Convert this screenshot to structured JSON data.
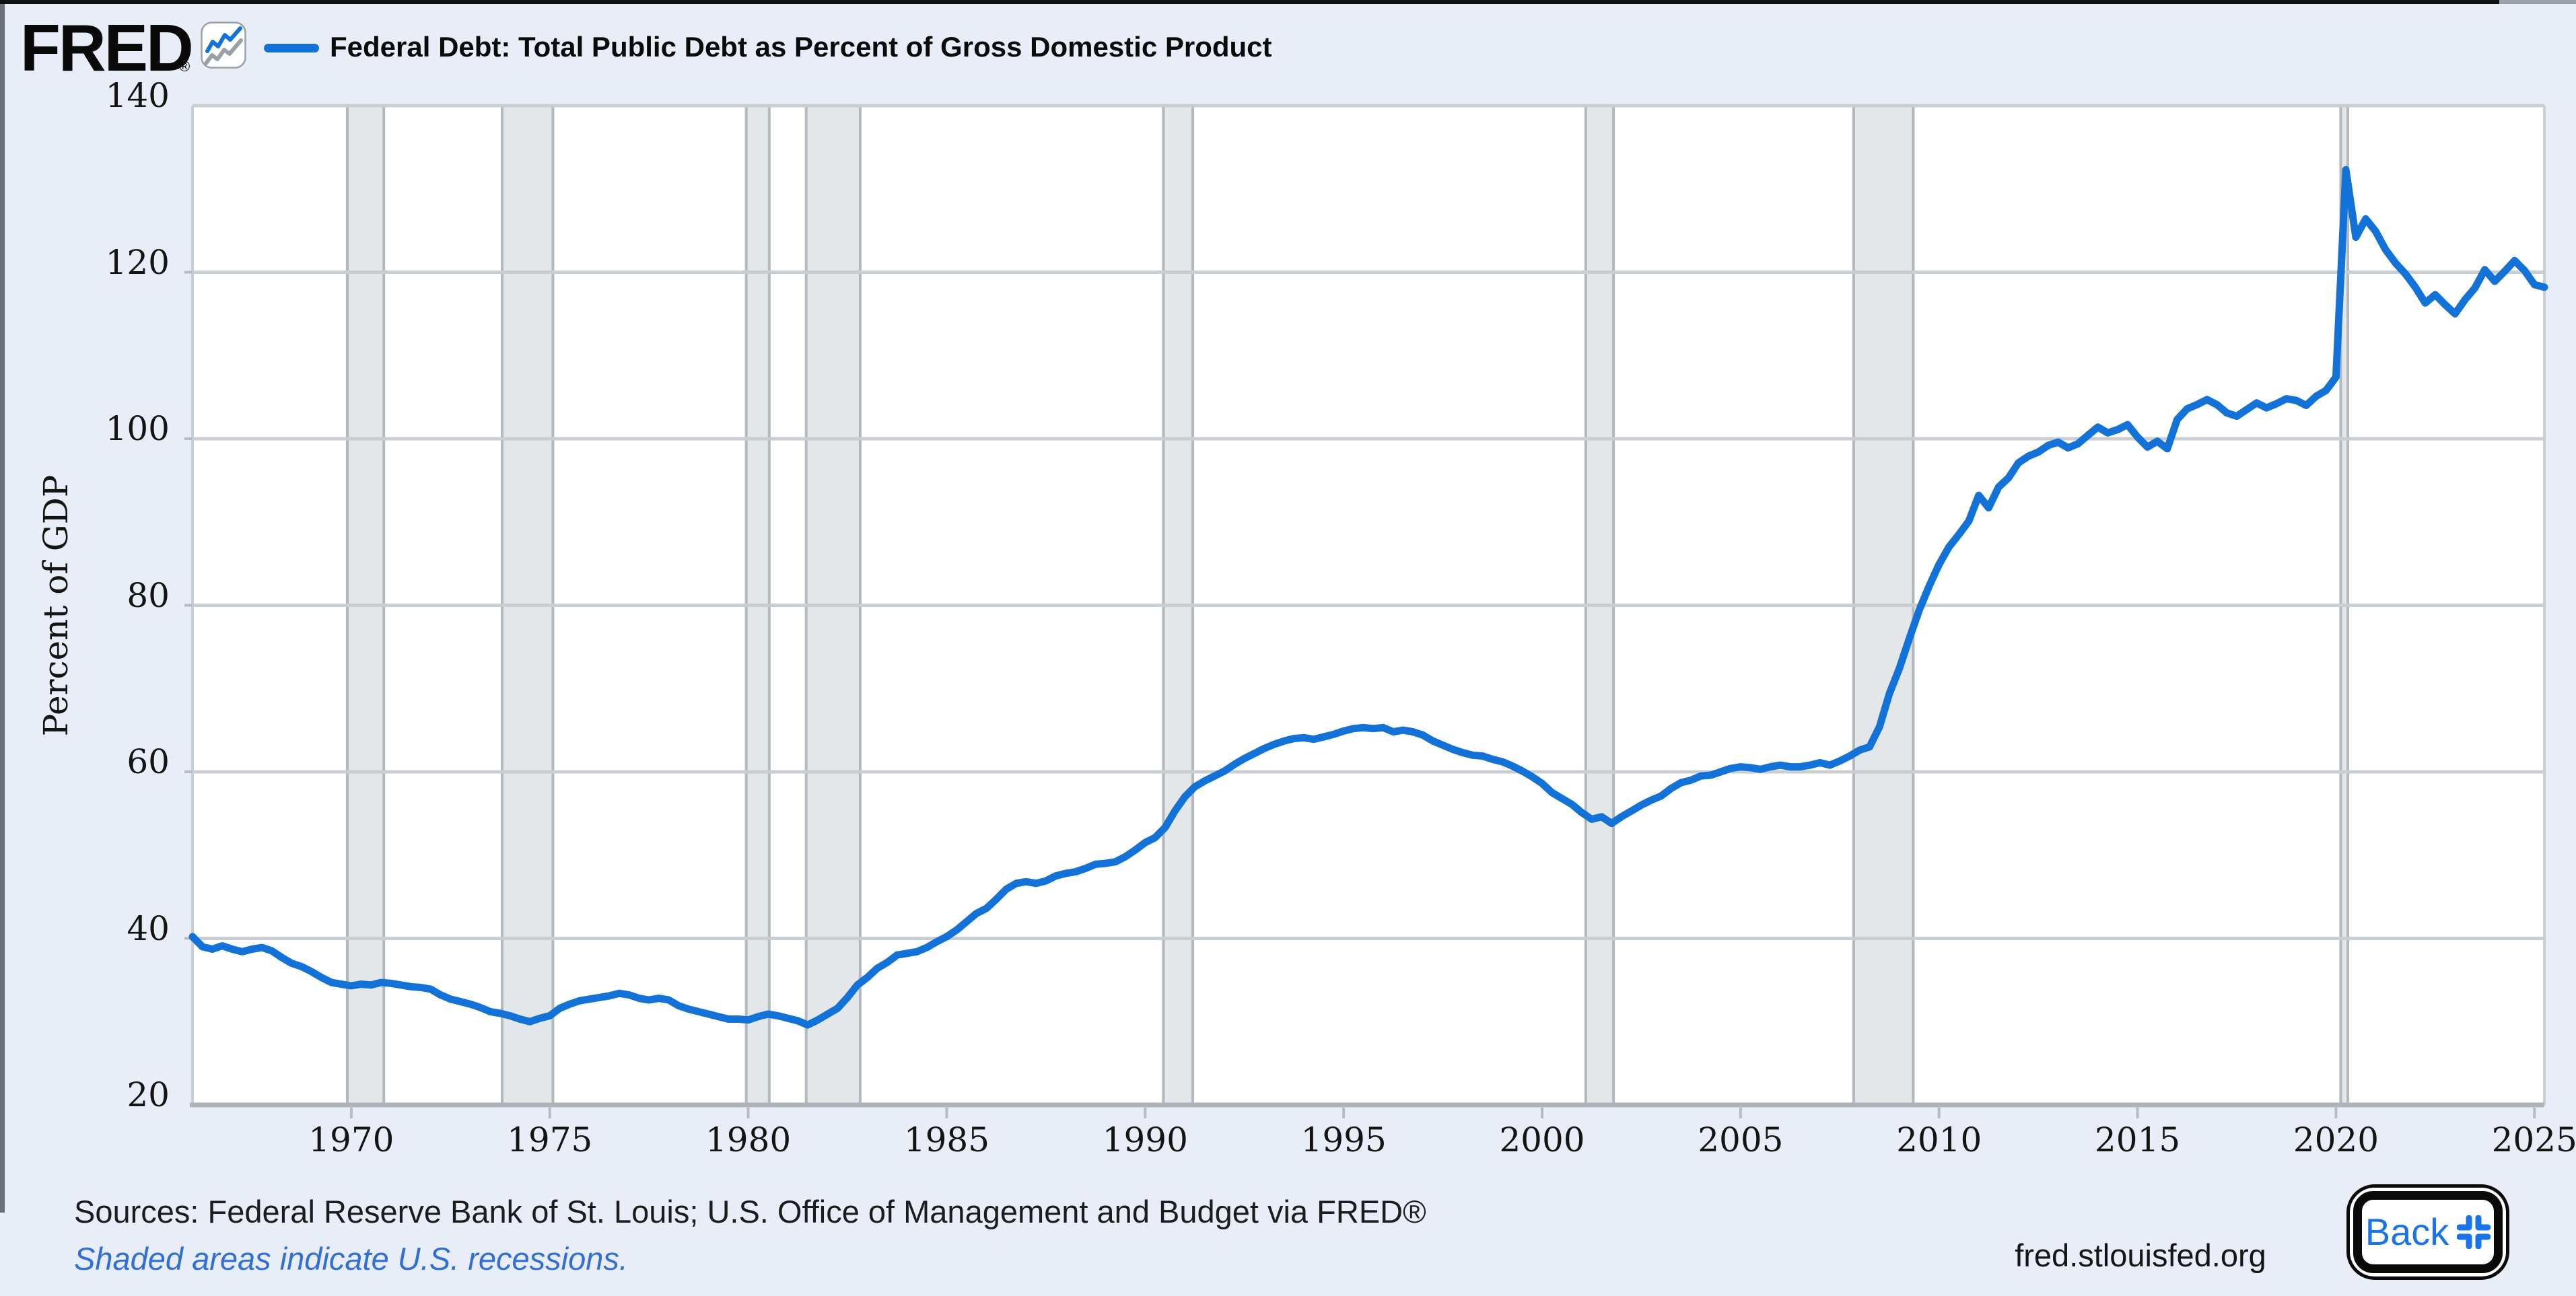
{
  "header": {
    "logo_text": "FRED",
    "registered_mark": "®",
    "legend_label": "Federal Debt: Total Public Debt as Percent of Gross Domestic Product"
  },
  "chart_data": {
    "type": "line",
    "title": "Federal Debt: Total Public Debt as Percent of Gross Domestic Product",
    "xlabel": "",
    "ylabel": "Percent of GDP",
    "ylim": [
      20,
      140
    ],
    "xlim": [
      1966,
      2025.25
    ],
    "yticks": [
      20,
      40,
      60,
      80,
      100,
      120,
      140
    ],
    "xticks": [
      1970,
      1975,
      1980,
      1985,
      1990,
      1995,
      2000,
      2005,
      2010,
      2015,
      2020,
      2025
    ],
    "grid": "horizontal",
    "legend_position": "top-left",
    "recessions": [
      [
        1969.9,
        1970.82
      ],
      [
        1973.8,
        1975.08
      ],
      [
        1979.95,
        1980.53
      ],
      [
        1981.46,
        1982.82
      ],
      [
        1990.46,
        1991.2
      ],
      [
        2001.1,
        2001.8
      ],
      [
        2007.85,
        2009.35
      ],
      [
        2020.12,
        2020.3
      ]
    ],
    "series": [
      {
        "name": "Federal Debt: Total Public Debt as Percent of Gross Domestic Product",
        "units": "Percent of GDP",
        "frequency": "quarterly",
        "x_start": 1966.0,
        "x_step": 0.25,
        "values": [
          40.2,
          39.0,
          38.7,
          39.1,
          38.7,
          38.4,
          38.7,
          38.9,
          38.5,
          37.7,
          37.0,
          36.6,
          36.0,
          35.3,
          34.7,
          34.5,
          34.3,
          34.5,
          34.4,
          34.7,
          34.6,
          34.4,
          34.2,
          34.1,
          33.9,
          33.2,
          32.7,
          32.4,
          32.1,
          31.7,
          31.2,
          31.0,
          30.7,
          30.3,
          30.0,
          30.4,
          30.7,
          31.6,
          32.1,
          32.5,
          32.7,
          32.9,
          33.1,
          33.4,
          33.2,
          32.8,
          32.6,
          32.8,
          32.6,
          31.9,
          31.5,
          31.2,
          30.9,
          30.6,
          30.3,
          30.3,
          30.2,
          30.6,
          30.9,
          30.7,
          30.4,
          30.1,
          29.6,
          30.2,
          30.9,
          31.6,
          32.9,
          34.4,
          35.3,
          36.4,
          37.1,
          38.0,
          38.2,
          38.4,
          38.9,
          39.6,
          40.2,
          41.0,
          42.0,
          43.0,
          43.6,
          44.7,
          45.9,
          46.6,
          46.8,
          46.6,
          46.9,
          47.5,
          47.8,
          48.0,
          48.4,
          48.9,
          49.0,
          49.2,
          49.8,
          50.6,
          51.5,
          52.1,
          53.3,
          55.3,
          57.0,
          58.2,
          58.9,
          59.5,
          60.1,
          60.9,
          61.6,
          62.2,
          62.8,
          63.3,
          63.7,
          64.0,
          64.1,
          63.9,
          64.2,
          64.5,
          64.9,
          65.2,
          65.3,
          65.2,
          65.3,
          64.8,
          65.0,
          64.8,
          64.4,
          63.7,
          63.2,
          62.7,
          62.3,
          62.0,
          61.9,
          61.5,
          61.2,
          60.7,
          60.1,
          59.4,
          58.6,
          57.5,
          56.8,
          56.1,
          55.1,
          54.3,
          54.6,
          53.8,
          54.6,
          55.3,
          56.0,
          56.6,
          57.1,
          58.0,
          58.7,
          59.0,
          59.5,
          59.6,
          60.0,
          60.4,
          60.6,
          60.5,
          60.3,
          60.6,
          60.8,
          60.6,
          60.6,
          60.8,
          61.1,
          60.8,
          61.3,
          61.9,
          62.6,
          63.0,
          65.4,
          69.4,
          72.4,
          76.0,
          79.4,
          82.3,
          84.9,
          87.0,
          88.5,
          90.1,
          93.2,
          91.7,
          94.2,
          95.3,
          97.1,
          97.9,
          98.4,
          99.2,
          99.6,
          98.9,
          99.4,
          100.4,
          101.4,
          100.7,
          101.1,
          101.7,
          100.2,
          99.0,
          99.7,
          98.8,
          102.3,
          103.6,
          104.1,
          104.7,
          104.1,
          103.1,
          102.7,
          103.5,
          104.3,
          103.7,
          104.2,
          104.8,
          104.6,
          104.0,
          105.1,
          105.8,
          107.4,
          132.3,
          124.2,
          126.4,
          124.9,
          122.7,
          121.1,
          119.8,
          118.2,
          116.3,
          117.3,
          116.1,
          115.0,
          116.7,
          118.1,
          120.3,
          118.9,
          120.1,
          121.4,
          120.2,
          118.5,
          118.2
        ]
      }
    ]
  },
  "footer": {
    "sources": "Sources: Federal Reserve Bank of St. Louis; U.S. Office of Management and Budget via FRED®",
    "note": "Shaded areas indicate U.S. recessions.",
    "site": "fred.stlouisfed.org",
    "back_label": "Back"
  },
  "colors": {
    "line": "#1372d8",
    "page_bg": "#e8edf8",
    "plot_bg": "#ffffff",
    "grid": "#c9ced3",
    "axis": "#aeb3b8",
    "tick": "#b7bcc1",
    "band_fill": "#e4e7ea",
    "band_edge": "#b3b8bd",
    "note_blue": "#2f6fd6",
    "back_blue": "#1a73e8",
    "logo_gray": "#9aa0a6"
  }
}
